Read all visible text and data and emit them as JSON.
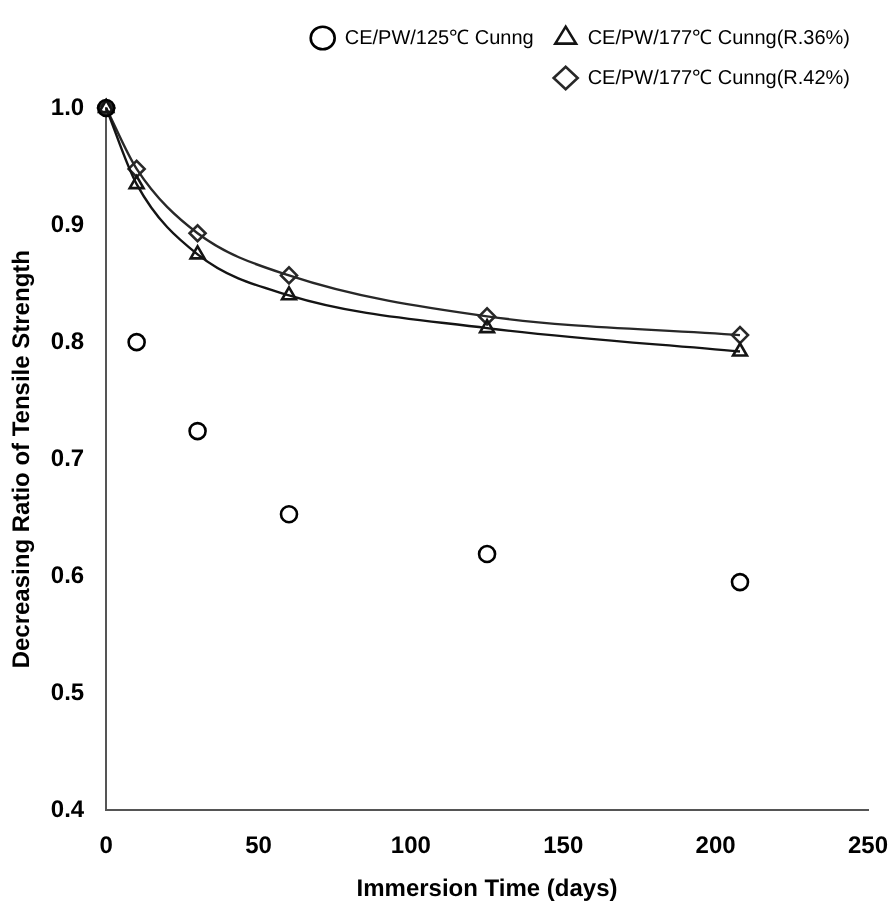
{
  "chart_data": {
    "type": "line",
    "xlabel": "Immersion Time (days)",
    "ylabel": "Decreasing Ratio of Tensile Strength",
    "xlim": [
      0,
      250
    ],
    "xticks": [
      0,
      50,
      100,
      150,
      200,
      250
    ],
    "ylim": [
      0.4,
      1.0
    ],
    "yticks": [
      {
        "value": 0.4,
        "label": "0.4"
      },
      {
        "value": 0.5,
        "label": "0.5"
      },
      {
        "value": 0.6,
        "label": "0.6"
      },
      {
        "value": 0.7,
        "label": "0.7"
      },
      {
        "value": 0.8,
        "label": "0.8"
      },
      {
        "value": 0.9,
        "label": "0.9"
      },
      {
        "value": 1,
        "label": "1.0"
      }
    ],
    "grid": false,
    "legend": "top right",
    "series": [
      {
        "name": "CE/PW/125℃ Cunng",
        "type": "scatter",
        "marker": "circle",
        "color": "#000000",
        "x": [
          0,
          10,
          30,
          60,
          125,
          208
        ],
        "values": [
          1.0,
          0.8,
          0.724,
          0.653,
          0.619,
          0.595
        ]
      },
      {
        "name": "CE/PW/177℃ Cunng(R.36%)",
        "marker": "triangle",
        "color": "#141414",
        "x": [
          0,
          10,
          30,
          60,
          125,
          208
        ],
        "values": [
          1.0,
          0.935,
          0.875,
          0.84,
          0.812,
          0.792
        ]
      },
      {
        "name": "CE/PW/177℃ Cunng(R.42%)",
        "marker": "diamond",
        "color": "#282828",
        "x": [
          0,
          10,
          30,
          60,
          125,
          208
        ],
        "values": [
          1.0,
          0.948,
          0.893,
          0.857,
          0.822,
          0.806
        ]
      }
    ]
  }
}
